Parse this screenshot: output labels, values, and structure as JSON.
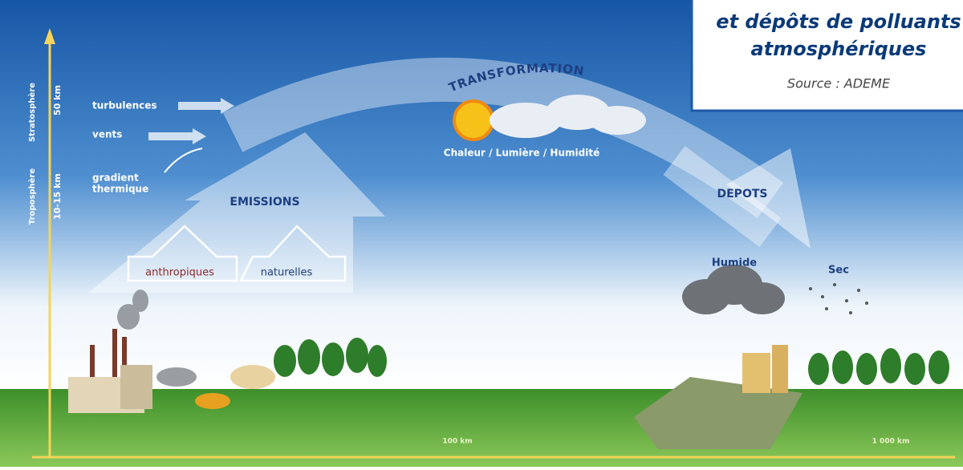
{
  "title": {
    "lines": [
      "et dépôts de polluants",
      "atmosphériques"
    ],
    "source": "Source : ADEME"
  },
  "altitude_axis": {
    "stratosphere": "Stratosphère",
    "stratosphere_height": "50 km",
    "troposphere": "Troposphère",
    "troposphere_height": "10-15 km"
  },
  "distance_axis": [
    "100 km",
    "1 000 km"
  ],
  "factors": {
    "turbulences": "turbulences",
    "vents": "vents",
    "gradient_thermique": [
      "gradient",
      "thermique"
    ]
  },
  "emissions": {
    "label": "EMISSIONS",
    "sources": [
      "anthropiques",
      "naturelles"
    ]
  },
  "transformation": {
    "label": "TRANSFORMATION",
    "conditions": "Chaleur / Lumière / Humidité"
  },
  "deposits": {
    "label": "DEPOTS",
    "types": [
      "Humide",
      "Sec"
    ]
  }
}
